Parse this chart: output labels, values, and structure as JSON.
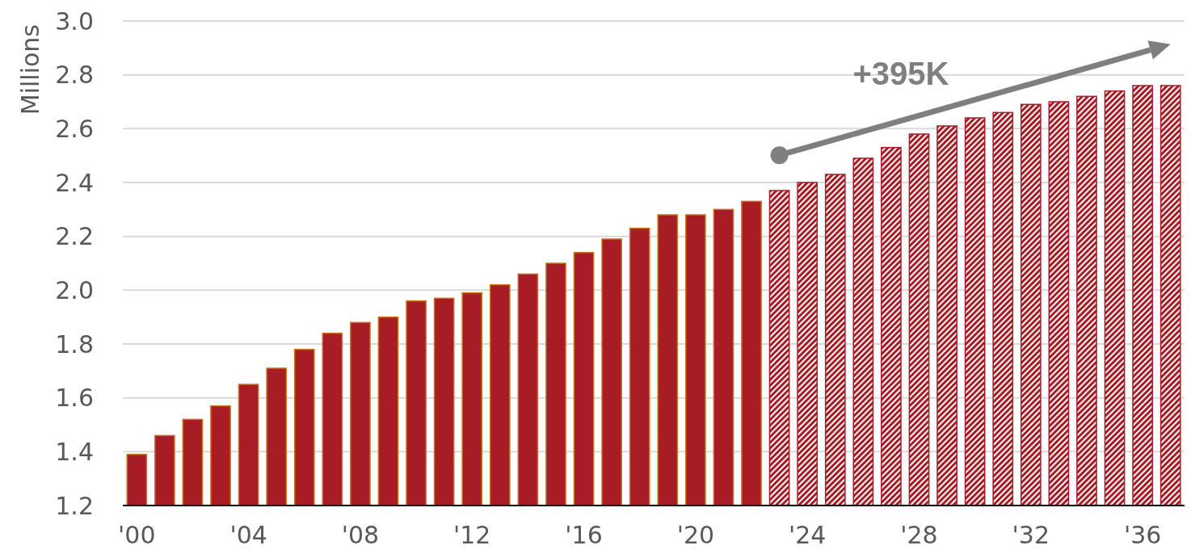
{
  "chart_data": {
    "type": "bar",
    "ylabel": "Millions",
    "annotations": [
      "+395K"
    ],
    "categories": [
      "'00",
      null,
      null,
      null,
      "'04",
      null,
      null,
      null,
      "'08",
      null,
      null,
      null,
      "'12",
      null,
      null,
      null,
      "'16",
      null,
      null,
      null,
      "'20",
      null,
      null,
      null,
      "'24",
      null,
      null,
      null,
      "'28",
      null,
      null,
      null,
      "'32",
      null,
      null,
      null,
      "'36",
      null
    ],
    "series": [
      {
        "color": "#a81c25",
        "values": [
          1.39,
          1.46,
          1.52,
          1.57,
          1.65,
          1.71,
          1.78,
          1.84,
          1.88,
          1.9,
          1.96,
          1.97,
          1.99,
          2.02,
          2.06,
          2.1,
          2.14,
          2.19,
          2.23,
          2.28,
          2.28,
          2.3,
          2.33,
          null,
          null,
          null,
          null,
          null,
          null,
          null,
          null,
          null,
          null,
          null,
          null,
          null,
          null,
          null
        ]
      },
      {
        "color": "#a81c25",
        "values": [
          null,
          null,
          null,
          null,
          null,
          null,
          null,
          null,
          null,
          null,
          null,
          null,
          null,
          null,
          null,
          null,
          null,
          null,
          null,
          null,
          null,
          null,
          null,
          2.37,
          2.4,
          2.43,
          2.49,
          2.53,
          2.58,
          2.61,
          2.64,
          2.66,
          2.69,
          2.7,
          2.72,
          2.74,
          2.76,
          2.76
        ]
      }
    ],
    "ylim": [
      1.2,
      3.0
    ],
    "yticks": [
      {
        "value": 1.2,
        "label": "1.2"
      },
      {
        "value": 1.4,
        "label": "1.4"
      },
      {
        "value": 1.6,
        "label": "1.6"
      },
      {
        "value": 1.8,
        "label": "1.8"
      },
      {
        "value": 2.0,
        "label": "2.0"
      },
      {
        "value": 2.2,
        "label": "2.2"
      },
      {
        "value": 2.4,
        "label": "2.4"
      },
      {
        "value": 2.6,
        "label": "2.6"
      },
      {
        "value": 2.8,
        "label": "2.8"
      },
      {
        "value": 3.0,
        "label": "3.0"
      }
    ],
    "grid": "y"
  }
}
